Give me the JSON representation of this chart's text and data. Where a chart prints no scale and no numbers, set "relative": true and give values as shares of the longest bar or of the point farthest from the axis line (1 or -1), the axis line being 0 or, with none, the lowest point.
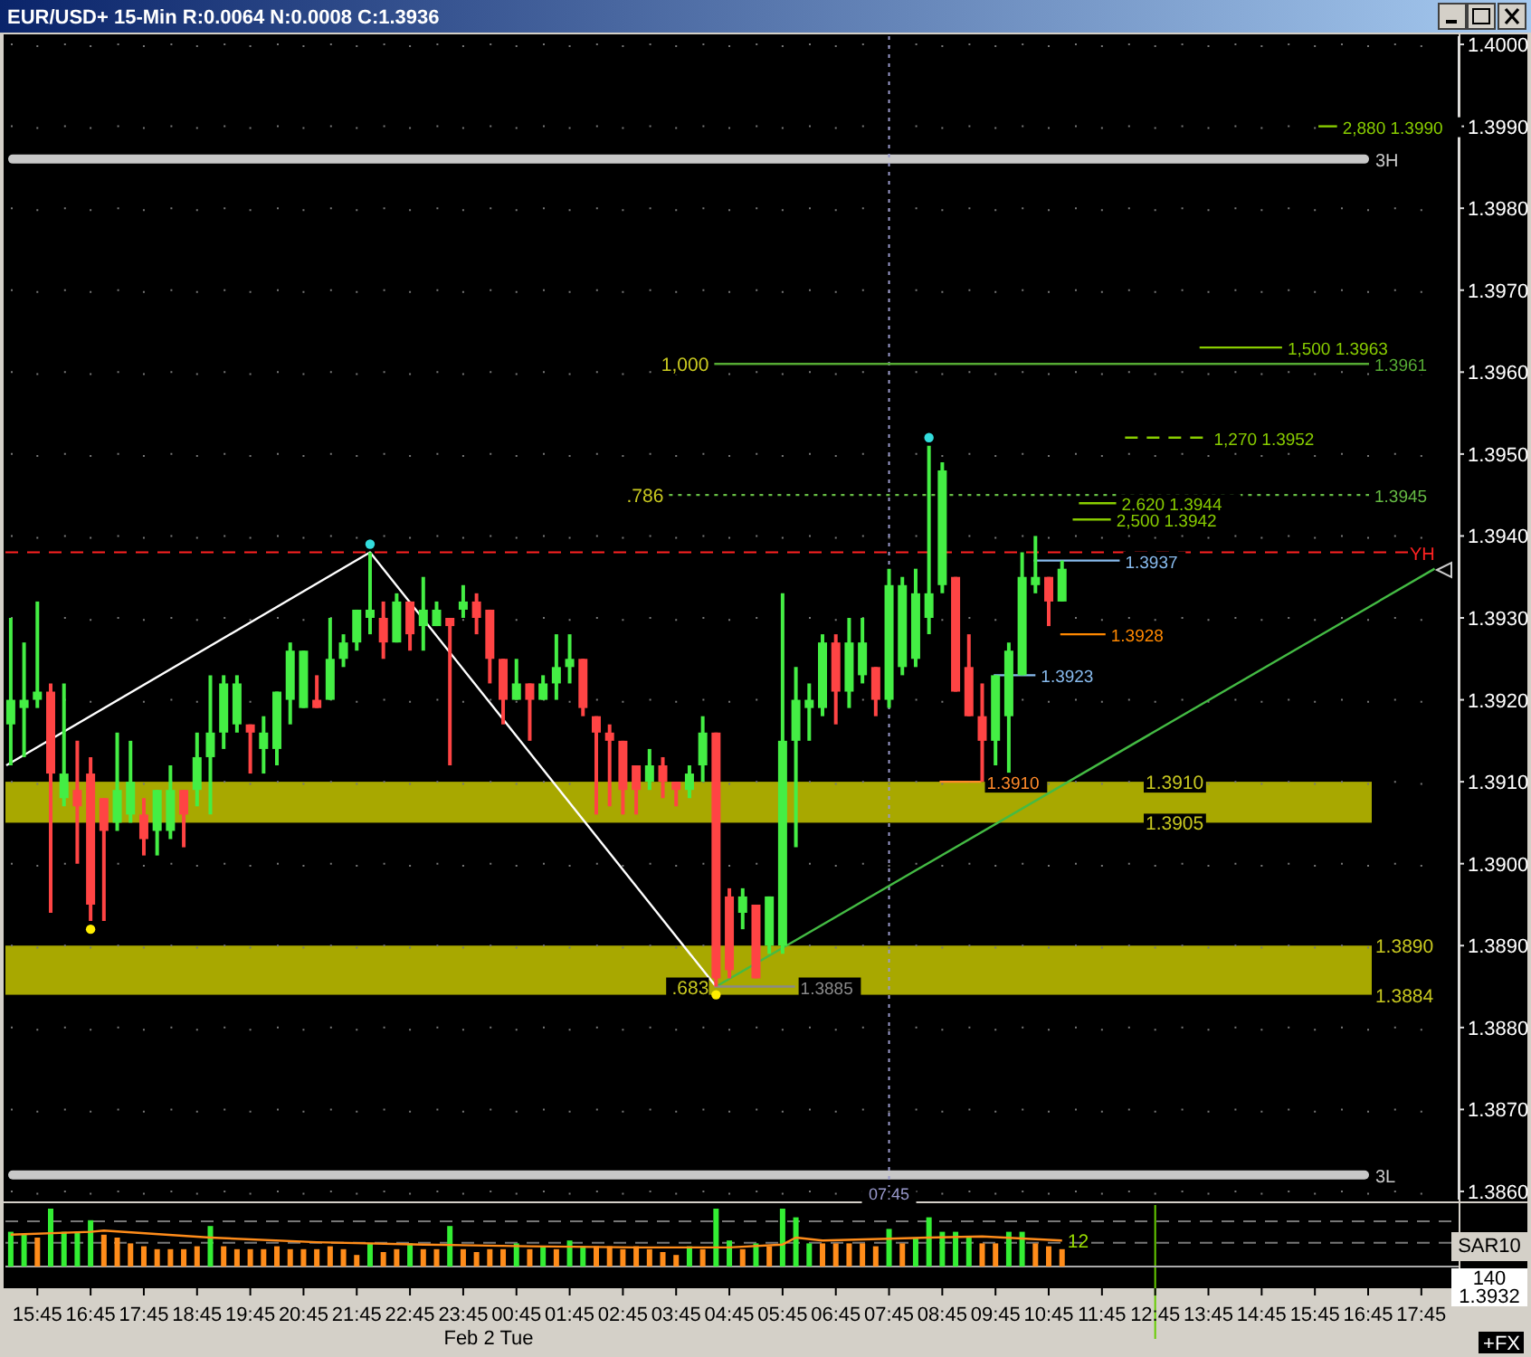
{
  "chart_data": [
    {
      "type": "candlestick",
      "title": "EUR/USD+ 15-Min R:0.0064 N:0.0008 C:1.3936",
      "x": [
        "--02-01T15:15",
        "--02-01T15:30",
        "--02-01T15:45",
        "--02-01T16:00",
        "--02-01T16:15",
        "--02-01T16:30",
        "--02-01T16:45",
        "--02-01T17:00",
        "--02-01T17:15",
        "--02-01T17:30",
        "--02-01T17:45",
        "--02-01T18:00",
        "--02-01T18:15",
        "--02-01T18:30",
        "--02-01T18:45",
        "--02-01T19:00",
        "--02-01T19:15",
        "--02-01T19:30",
        "--02-01T19:45",
        "--02-01T20:00",
        "--02-01T20:15",
        "--02-01T20:30",
        "--02-01T20:45",
        "--02-01T21:00",
        "--02-01T21:15",
        "--02-01T21:30",
        "--02-01T21:45",
        "--02-01T22:00",
        "--02-01T22:15",
        "--02-01T22:30",
        "--02-01T22:45",
        "--02-01T23:00",
        "--02-01T23:15",
        "--02-01T23:30",
        "--02-01T23:45",
        "--02-02T00:00",
        "--02-02T00:15",
        "--02-02T00:30",
        "--02-02T00:45",
        "--02-02T01:00",
        "--02-02T01:15",
        "--02-02T01:30",
        "--02-02T01:45",
        "--02-02T02:00",
        "--02-02T02:15",
        "--02-02T02:30",
        "--02-02T02:45",
        "--02-02T03:00",
        "--02-02T03:15",
        "--02-02T03:30",
        "--02-02T03:45",
        "--02-02T04:00",
        "--02-02T04:15",
        "--02-02T04:30",
        "--02-02T04:45",
        "--02-02T05:00",
        "--02-02T05:15",
        "--02-02T05:30",
        "--02-02T05:45",
        "--02-02T06:00",
        "--02-02T06:15",
        "--02-02T06:30",
        "--02-02T06:45",
        "--02-02T07:00",
        "--02-02T07:15",
        "--02-02T07:30",
        "--02-02T07:45",
        "--02-02T08:00",
        "--02-02T08:15",
        "--02-02T08:30",
        "--02-02T08:45",
        "--02-02T09:00",
        "--02-02T09:15",
        "--02-02T09:30",
        "--02-02T09:45",
        "--02-02T10:00",
        "--02-02T10:15",
        "--02-02T10:30",
        "--02-02T10:45",
        "--02-02T11:00"
      ],
      "ohlc": [
        [
          1.3917,
          1.393,
          1.3912,
          1.392
        ],
        [
          1.3919,
          1.3927,
          1.3913,
          1.392
        ],
        [
          1.392,
          1.3932,
          1.3919,
          1.3921
        ],
        [
          1.3921,
          1.3922,
          1.3894,
          1.3911
        ],
        [
          1.3908,
          1.3922,
          1.3907,
          1.3911
        ],
        [
          1.3909,
          1.3915,
          1.39,
          1.3907
        ],
        [
          1.3911,
          1.3913,
          1.3893,
          1.3895
        ],
        [
          1.3908,
          1.3908,
          1.3893,
          1.3904
        ],
        [
          1.3905,
          1.3916,
          1.3904,
          1.3909
        ],
        [
          1.3906,
          1.3915,
          1.3905,
          1.391
        ],
        [
          1.3906,
          1.3908,
          1.3901,
          1.3903
        ],
        [
          1.3904,
          1.3909,
          1.3901,
          1.3909
        ],
        [
          1.3904,
          1.3912,
          1.3903,
          1.3909
        ],
        [
          1.3909,
          1.3909,
          1.3902,
          1.3906
        ],
        [
          1.3909,
          1.3916,
          1.3907,
          1.3913
        ],
        [
          1.3913,
          1.3923,
          1.3906,
          1.3916
        ],
        [
          1.3916,
          1.3923,
          1.3914,
          1.3922
        ],
        [
          1.3917,
          1.3923,
          1.3916,
          1.3922
        ],
        [
          1.3917,
          1.3917,
          1.3911,
          1.3916
        ],
        [
          1.3914,
          1.3918,
          1.3911,
          1.3916
        ],
        [
          1.3914,
          1.3921,
          1.3912,
          1.3921
        ],
        [
          1.392,
          1.3927,
          1.3917,
          1.3926
        ],
        [
          1.3919,
          1.3926,
          1.3919,
          1.3926
        ],
        [
          1.392,
          1.3923,
          1.3919,
          1.3919
        ],
        [
          1.392,
          1.393,
          1.392,
          1.3925
        ],
        [
          1.3925,
          1.3928,
          1.3924,
          1.3927
        ],
        [
          1.3927,
          1.3931,
          1.3926,
          1.3931
        ],
        [
          1.393,
          1.3938,
          1.3928,
          1.3931
        ],
        [
          1.393,
          1.3932,
          1.3925,
          1.3927
        ],
        [
          1.3927,
          1.3933,
          1.3927,
          1.3932
        ],
        [
          1.3932,
          1.3932,
          1.3926,
          1.3928
        ],
        [
          1.3929,
          1.3935,
          1.3926,
          1.3931
        ],
        [
          1.3929,
          1.3932,
          1.3929,
          1.3931
        ],
        [
          1.393,
          1.393,
          1.3912,
          1.3929
        ],
        [
          1.3931,
          1.3934,
          1.393,
          1.3932
        ],
        [
          1.3932,
          1.3933,
          1.3928,
          1.393
        ],
        [
          1.3931,
          1.3931,
          1.3922,
          1.3925
        ],
        [
          1.3925,
          1.3925,
          1.3917,
          1.392
        ],
        [
          1.392,
          1.3925,
          1.392,
          1.3922
        ],
        [
          1.3922,
          1.3922,
          1.3915,
          1.392
        ],
        [
          1.392,
          1.3923,
          1.392,
          1.3922
        ],
        [
          1.3922,
          1.3928,
          1.392,
          1.3924
        ],
        [
          1.3924,
          1.3928,
          1.3922,
          1.3925
        ],
        [
          1.3925,
          1.3925,
          1.3918,
          1.3919
        ],
        [
          1.3918,
          1.3918,
          1.3906,
          1.3916
        ],
        [
          1.3916,
          1.3917,
          1.3907,
          1.3915
        ],
        [
          1.3915,
          1.3915,
          1.3906,
          1.3909
        ],
        [
          1.3912,
          1.3912,
          1.3906,
          1.3909
        ],
        [
          1.391,
          1.3914,
          1.3909,
          1.3912
        ],
        [
          1.3912,
          1.3913,
          1.3908,
          1.391
        ],
        [
          1.391,
          1.391,
          1.3907,
          1.3909
        ],
        [
          1.3909,
          1.3912,
          1.3908,
          1.3911
        ],
        [
          1.3912,
          1.3918,
          1.391,
          1.3916
        ],
        [
          1.3916,
          1.3916,
          1.3885,
          1.3886
        ],
        [
          1.3896,
          1.3897,
          1.3886,
          1.3887
        ],
        [
          1.3894,
          1.3897,
          1.3892,
          1.3896
        ],
        [
          1.3895,
          1.3895,
          1.3886,
          1.3886
        ],
        [
          1.389,
          1.3896,
          1.3889,
          1.3896
        ],
        [
          1.389,
          1.3933,
          1.3889,
          1.3915
        ],
        [
          1.3915,
          1.3924,
          1.3902,
          1.392
        ],
        [
          1.3919,
          1.3922,
          1.3915,
          1.392
        ],
        [
          1.3919,
          1.3928,
          1.3918,
          1.3927
        ],
        [
          1.3927,
          1.3928,
          1.3917,
          1.3921
        ],
        [
          1.3921,
          1.393,
          1.3919,
          1.3927
        ],
        [
          1.3923,
          1.393,
          1.3922,
          1.3927
        ],
        [
          1.3924,
          1.3924,
          1.3918,
          1.392
        ],
        [
          1.392,
          1.3936,
          1.3919,
          1.3934
        ],
        [
          1.3924,
          1.3935,
          1.3923,
          1.3934
        ],
        [
          1.3925,
          1.3936,
          1.3924,
          1.3933
        ],
        [
          1.393,
          1.3951,
          1.3928,
          1.3933
        ],
        [
          1.3934,
          1.3949,
          1.3933,
          1.3948
        ],
        [
          1.3935,
          1.3935,
          1.3921,
          1.3921
        ],
        [
          1.3924,
          1.3928,
          1.3918,
          1.3918
        ],
        [
          1.3918,
          1.3922,
          1.391,
          1.3915
        ],
        [
          1.3915,
          1.3923,
          1.3912,
          1.3923
        ],
        [
          1.3918,
          1.3927,
          1.3911,
          1.3926
        ],
        [
          1.3923,
          1.3938,
          1.3923,
          1.3935
        ],
        [
          1.3934,
          1.394,
          1.3933,
          1.3935
        ],
        [
          1.3935,
          1.3935,
          1.3929,
          1.3932
        ],
        [
          1.3932,
          1.3937,
          1.3932,
          1.3936
        ]
      ],
      "colors": [
        "#44ee44",
        "#44ee44",
        "#44ee44",
        "#ff4444",
        "#44ee44",
        "#ff4444",
        "#ff4444",
        "#ff4444",
        "#44ee44",
        "#44ee44",
        "#ff4444",
        "#44ee44",
        "#44ee44",
        "#ff4444",
        "#44ee44",
        "#44ee44",
        "#44ee44",
        "#44ee44",
        "#ff4444",
        "#44ee44",
        "#44ee44",
        "#44ee44",
        "#44ee44",
        "#ff4444",
        "#44ee44",
        "#44ee44",
        "#44ee44",
        "#44ee44",
        "#ff4444",
        "#44ee44",
        "#ff4444",
        "#44ee44",
        "#44ee44",
        "#ff4444",
        "#44ee44",
        "#ff4444",
        "#ff4444",
        "#ff4444",
        "#44ee44",
        "#ff4444",
        "#44ee44",
        "#44ee44",
        "#44ee44",
        "#ff4444",
        "#ff4444",
        "#ff4444",
        "#ff4444",
        "#ff4444",
        "#44ee44",
        "#ff4444",
        "#ff4444",
        "#44ee44",
        "#44ee44",
        "#ff4444",
        "#ff4444",
        "#44ee44",
        "#ff4444",
        "#44ee44",
        "#44ee44",
        "#44ee44",
        "#44ee44",
        "#44ee44",
        "#ff4444",
        "#44ee44",
        "#44ee44",
        "#ff4444",
        "#44ee44",
        "#44ee44",
        "#44ee44",
        "#44ee44",
        "#44ee44",
        "#ff4444",
        "#ff4444",
        "#ff4444",
        "#44ee44",
        "#44ee44",
        "#44ee44",
        "#44ee44",
        "#ff4444",
        "#44ee44"
      ],
      "series": [
        {
          "type": "line",
          "color": "#ffffff",
          "x": [
            "--02-01T15:10",
            "--02-01T22:00",
            "--02-02T04:30"
          ],
          "values": [
            1.3912,
            1.3938,
            1.3885
          ]
        },
        {
          "type": "line",
          "color": "#44bb44",
          "x": [
            "--02-02T04:30",
            "--02-02T18:00"
          ],
          "values": [
            1.3885,
            1.3936
          ]
        },
        {
          "type": "scatter",
          "marker": "circle",
          "color": "#ffee00",
          "x": [
            "--02-01T16:45",
            "--02-02T04:30"
          ],
          "values": [
            1.3892,
            1.3884
          ]
        },
        {
          "type": "scatter",
          "marker": "circle",
          "color": "#33dddd",
          "x": [
            "--02-01T22:00",
            "--02-02T08:30"
          ],
          "values": [
            1.3939,
            1.3952
          ]
        },
        {
          "type": "line",
          "name": "2,880 1.3990",
          "color": "#88cc00",
          "x": [
            "--02-02T15:49",
            "--02-02T16:10"
          ],
          "values": [
            1.399,
            1.399
          ]
        },
        {
          "type": "line",
          "name": "1,500 1.3963",
          "color": "#88cc00",
          "x": [
            "--02-02T13:35",
            "--02-02T15:08"
          ],
          "values": [
            1.3963,
            1.3963
          ]
        },
        {
          "type": "line",
          "name": "1.3961",
          "color": "#55aa33",
          "x": [
            "--02-02T04:28",
            "--02-02T16:46"
          ],
          "values": [
            1.3961,
            1.3961
          ]
        },
        {
          "type": "line",
          "name": "1,270 1.3952",
          "color": "#88cc00",
          "line_style": "dashed",
          "x": [
            "--02-02T12:11",
            "--02-02T13:45"
          ],
          "values": [
            1.3952,
            1.3952
          ]
        },
        {
          "type": "line",
          "name": "1.3945",
          "color": "#66bb44",
          "line_style": "dotted",
          "x": [
            "--02-02T03:37",
            "--02-02T16:46"
          ],
          "values": [
            1.3945,
            1.3945
          ]
        },
        {
          "type": "line",
          "name": "2,620 1.3944",
          "color": "#88cc00",
          "x": [
            "--02-02T11:19",
            "--02-02T12:01"
          ],
          "values": [
            1.3944,
            1.3944
          ]
        },
        {
          "type": "line",
          "name": "2,500 1.3942",
          "color": "#88cc00",
          "x": [
            "--02-02T11:12",
            "--02-02T11:55"
          ],
          "values": [
            1.3942,
            1.3942
          ]
        },
        {
          "type": "line",
          "name": "1.3937",
          "color": "#88bbee",
          "x": [
            "--02-02T10:28",
            "--02-02T12:05"
          ],
          "values": [
            1.3937,
            1.3937
          ]
        },
        {
          "type": "line",
          "name": "1.3928",
          "color": "#ff8800",
          "x": [
            "--02-02T10:58",
            "--02-02T11:49"
          ],
          "values": [
            1.3928,
            1.3928
          ]
        },
        {
          "type": "line",
          "name": "1.3923",
          "color": "#88bbee",
          "x": [
            "--02-02T09:43",
            "--02-02T10:30"
          ],
          "values": [
            1.3923,
            1.3923
          ]
        },
        {
          "type": "line",
          "name": "1.3910",
          "color": "#ff8a2a",
          "x": [
            "--02-02T08:42",
            "--02-02T09:29"
          ],
          "values": [
            1.391,
            1.391
          ]
        },
        {
          "type": "line",
          "name": "1.3885",
          "color": "#8a8a8a",
          "x": [
            "--02-02T04:28",
            "--02-02T05:59"
          ],
          "values": [
            1.3885,
            1.3885
          ]
        }
      ],
      "bands": [
        {
          "axis": "y",
          "from": 1.3905,
          "to": 1.391,
          "color": "#a8a800"
        },
        {
          "axis": "y",
          "from": 1.3884,
          "to": 1.389,
          "color": "#a8a800"
        }
      ],
      "ref_lines": [
        {
          "axis": "y",
          "value": 1.3938,
          "label": "YH",
          "color": "#ff2222",
          "line_style": "dashed"
        },
        {
          "axis": "y",
          "value": 1.3986,
          "label": "3H",
          "color": "#c8c8c8"
        },
        {
          "axis": "y",
          "value": 1.3862,
          "label": "3L",
          "color": "#c8c8c8"
        },
        {
          "axis": "x",
          "value": "--02-02T07:45",
          "label": "07:45",
          "color": "#9999cc",
          "line_style": "dotted"
        }
      ],
      "annotations": [
        {
          "text": "1.3910",
          "x": "--02-02T12:28",
          "y": 1.391
        },
        {
          "text": "1.3905",
          "x": "--02-02T12:28",
          "y": 1.3905
        },
        {
          "text": "1.3890",
          "x": "--02-02T16:47",
          "y": 1.389
        },
        {
          "text": "1.3884",
          "x": "--02-02T16:47",
          "y": 1.3884
        },
        {
          "text": ".683",
          "x": "--02-02T04:28",
          "y": 1.3885
        },
        {
          "text": "1,000",
          "x": "--02-02T04:28",
          "y": 1.3961
        },
        {
          "text": ".786",
          "x": "--02-02T03:37",
          "y": 1.3945
        }
      ],
      "xlim": [
        "--02-01T15:09",
        "--02-02T18:27"
      ],
      "ylim": [
        1.3859,
        1.4001
      ],
      "xticks": [
        {
          "value": "--02-01T15:45",
          "label": null
        },
        {
          "value": "--02-01T16:45",
          "label": null
        },
        {
          "value": "--02-01T17:45",
          "label": null
        },
        {
          "value": "--02-01T18:45",
          "label": null
        },
        {
          "value": "--02-01T19:45",
          "label": null
        },
        {
          "value": "--02-01T20:45",
          "label": null
        },
        {
          "value": "--02-01T21:45",
          "label": null
        },
        {
          "value": "--02-01T22:45",
          "label": null
        },
        {
          "value": "--02-01T23:45",
          "label": null
        },
        {
          "value": "--02-02T00:45",
          "label": null
        },
        {
          "value": "--02-02T01:45",
          "label": null
        },
        {
          "value": "--02-02T02:45",
          "label": null
        },
        {
          "value": "--02-02T03:45",
          "label": null
        },
        {
          "value": "--02-02T04:45",
          "label": null
        },
        {
          "value": "--02-02T05:45",
          "label": null
        },
        {
          "value": "--02-02T06:45",
          "label": null
        },
        {
          "value": "--02-02T07:45",
          "label": null
        },
        {
          "value": "--02-02T08:45",
          "label": null
        },
        {
          "value": "--02-02T09:45",
          "label": null
        },
        {
          "value": "--02-02T10:45",
          "label": null
        },
        {
          "value": "--02-02T11:45",
          "label": null
        },
        {
          "value": "--02-02T12:45",
          "label": null
        },
        {
          "value": "--02-02T13:45",
          "label": null
        },
        {
          "value": "--02-02T14:45",
          "label": null
        },
        {
          "value": "--02-02T15:45",
          "label": null
        },
        {
          "value": "--02-02T16:45",
          "label": null
        },
        {
          "value": "--02-02T17:45",
          "label": null
        }
      ],
      "yticks": [
        {
          "value": 1.386,
          "label": "1.3860"
        },
        {
          "value": 1.387,
          "label": "1.3870"
        },
        {
          "value": 1.388,
          "label": "1.3880"
        },
        {
          "value": 1.389,
          "label": "1.3890"
        },
        {
          "value": 1.39,
          "label": "1.3900"
        },
        {
          "value": 1.391,
          "label": "1.3910"
        },
        {
          "value": 1.392,
          "label": "1.3920"
        },
        {
          "value": 1.393,
          "label": "1.3930"
        },
        {
          "value": 1.394,
          "label": "1.3940"
        },
        {
          "value": 1.395,
          "label": "1.3950"
        },
        {
          "value": 1.396,
          "label": "1.3960"
        },
        {
          "value": 1.397,
          "label": "1.3970"
        },
        {
          "value": 1.398,
          "label": "1.3980"
        },
        {
          "value": 1.399,
          "label": "1.3990"
        },
        {
          "value": 1.4,
          "label": "1.4000"
        }
      ],
      "grid": true,
      "tick_labels": "y"
    },
    {
      "type": "bar",
      "relative": true,
      "x": [
        "--02-01T15:15",
        "--02-01T15:30",
        "--02-01T15:45",
        "--02-01T16:00",
        "--02-01T16:15",
        "--02-01T16:30",
        "--02-01T16:45",
        "--02-01T17:00",
        "--02-01T17:15",
        "--02-01T17:30",
        "--02-01T17:45",
        "--02-01T18:00",
        "--02-01T18:15",
        "--02-01T18:30",
        "--02-01T18:45",
        "--02-01T19:00",
        "--02-01T19:15",
        "--02-01T19:30",
        "--02-01T19:45",
        "--02-01T20:00",
        "--02-01T20:15",
        "--02-01T20:30",
        "--02-01T20:45",
        "--02-01T21:00",
        "--02-01T21:15",
        "--02-01T21:30",
        "--02-01T21:45",
        "--02-01T22:00",
        "--02-01T22:15",
        "--02-01T22:30",
        "--02-01T22:45",
        "--02-01T23:00",
        "--02-01T23:15",
        "--02-01T23:30",
        "--02-01T23:45",
        "--02-02T00:00",
        "--02-02T00:15",
        "--02-02T00:30",
        "--02-02T00:45",
        "--02-02T01:00",
        "--02-02T01:15",
        "--02-02T01:30",
        "--02-02T01:45",
        "--02-02T02:00",
        "--02-02T02:15",
        "--02-02T02:30",
        "--02-02T02:45",
        "--02-02T03:00",
        "--02-02T03:15",
        "--02-02T03:30",
        "--02-02T03:45",
        "--02-02T04:00",
        "--02-02T04:15",
        "--02-02T04:30",
        "--02-02T04:45",
        "--02-02T05:00",
        "--02-02T05:15",
        "--02-02T05:30",
        "--02-02T05:45",
        "--02-02T06:00",
        "--02-02T06:15",
        "--02-02T06:30",
        "--02-02T06:45",
        "--02-02T07:00",
        "--02-02T07:15",
        "--02-02T07:30",
        "--02-02T07:45",
        "--02-02T08:00",
        "--02-02T08:15",
        "--02-02T08:30",
        "--02-02T08:45",
        "--02-02T09:00",
        "--02-02T09:15",
        "--02-02T09:30",
        "--02-02T09:45",
        "--02-02T10:00",
        "--02-02T10:15",
        "--02-02T10:30",
        "--02-02T10:45",
        "--02-02T11:00"
      ],
      "series": [
        {
          "type": "bar",
          "values": [
            0.6,
            0.55,
            0.5,
            1,
            0.6,
            0.6,
            0.8,
            0.55,
            0.5,
            0.4,
            0.35,
            0.3,
            0.3,
            0.3,
            0.35,
            0.7,
            0.35,
            0.3,
            0.3,
            0.3,
            0.35,
            0.3,
            0.3,
            0.3,
            0.35,
            0.3,
            0.2,
            0.4,
            0.25,
            0.3,
            0.4,
            0.3,
            0.3,
            0.7,
            0.3,
            0.25,
            0.3,
            0.3,
            0.4,
            0.3,
            0.35,
            0.3,
            0.45,
            0.35,
            0.35,
            0.35,
            0.3,
            0.35,
            0.3,
            0.25,
            0.2,
            0.35,
            0.3,
            1,
            0.45,
            0.3,
            0.4,
            0.35,
            1,
            0.85,
            0.4,
            0.4,
            0.4,
            0.4,
            0.4,
            0.35,
            0.65,
            0.4,
            0.5,
            0.85,
            0.6,
            0.6,
            0.5,
            0.4,
            0.4,
            0.6,
            0.6,
            0.4,
            0.35,
            0.3
          ],
          "colors": [
            "#33ee33",
            "#33ee33",
            "#ff8c1a",
            "#33ee33",
            "#33ee33",
            "#33ee33",
            "#33ee33",
            "#ff8c1a",
            "#ff8c1a",
            "#ff8c1a",
            "#ff8c1a",
            "#ff8c1a",
            "#ff8c1a",
            "#ff8c1a",
            "#ff8c1a",
            "#33ee33",
            "#ff8c1a",
            "#ff8c1a",
            "#ff8c1a",
            "#ff8c1a",
            "#ff8c1a",
            "#ff8c1a",
            "#ff8c1a",
            "#ff8c1a",
            "#ff8c1a",
            "#ff8c1a",
            "#ff8c1a",
            "#33ee33",
            "#ff8c1a",
            "#ff8c1a",
            "#33ee33",
            "#ff8c1a",
            "#ff8c1a",
            "#33ee33",
            "#ff8c1a",
            "#ff8c1a",
            "#ff8c1a",
            "#ff8c1a",
            "#33ee33",
            "#ff8c1a",
            "#33ee33",
            "#ff8c1a",
            "#33ee33",
            "#33ee33",
            "#ff8c1a",
            "#ff8c1a",
            "#ff8c1a",
            "#ff8c1a",
            "#ff8c1a",
            "#ff8c1a",
            "#ff8c1a",
            "#33ee33",
            "#ff8c1a",
            "#33ee33",
            "#33ee33",
            "#ff8c1a",
            "#33ee33",
            "#ff8c1a",
            "#33ee33",
            "#33ee33",
            "#33ee33",
            "#ff8c1a",
            "#ff8c1a",
            "#ff8c1a",
            "#ff8c1a",
            "#ff8c1a",
            "#33ee33",
            "#ff8c1a",
            "#33ee33",
            "#33ee33",
            "#33ee33",
            "#33ee33",
            "#33ee33",
            "#ff8c1a",
            "#ff8c1a",
            "#33ee33",
            "#33ee33",
            "#ff8c1a",
            "#ff8c1a",
            "#ff8c1a"
          ]
        },
        {
          "type": "line",
          "color": "#ff8c1a",
          "x": [
            "--02-01T15:15",
            "--02-01T16:45",
            "--02-01T17:00",
            "--02-01T19:00",
            "--02-01T21:00",
            "--02-01T23:00",
            "--02-02T01:00",
            "--02-02T03:00",
            "--02-02T04:45",
            "--02-02T05:45",
            "--02-02T06:00",
            "--02-02T06:30",
            "--02-02T08:30",
            "--02-02T09:30",
            "--02-02T11:00"
          ],
          "values": [
            0.55,
            0.6,
            0.62,
            0.5,
            0.42,
            0.38,
            0.35,
            0.33,
            0.33,
            0.38,
            0.5,
            0.45,
            0.5,
            0.52,
            0.45
          ]
        }
      ],
      "ref_lines": [
        {
          "axis": "x",
          "value": "--02-02T12:45",
          "color": "#66cc00"
        },
        {
          "axis": "y",
          "value": 0.78,
          "color": "#777777",
          "line_style": "dashed"
        },
        {
          "axis": "y",
          "value": 0.41,
          "color": "#777777",
          "line_style": "dashed"
        }
      ],
      "annotations": [
        {
          "text": "12",
          "x": "--02-02T11:00",
          "y": 0.45
        },
        "Feb 2 Tue",
        "SAR10",
        "140",
        "1.3932",
        "+FX"
      ],
      "xlim": [
        "--02-01T15:09",
        "--02-02T18:27"
      ],
      "xticks": [
        {
          "value": "--02-01T15:45",
          "label": "15:45"
        },
        {
          "value": "--02-01T16:45",
          "label": "16:45"
        },
        {
          "value": "--02-01T17:45",
          "label": "17:45"
        },
        {
          "value": "--02-01T18:45",
          "label": "18:45"
        },
        {
          "value": "--02-01T19:45",
          "label": "19:45"
        },
        {
          "value": "--02-01T20:45",
          "label": "20:45"
        },
        {
          "value": "--02-01T21:45",
          "label": "21:45"
        },
        {
          "value": "--02-01T22:45",
          "label": "22:45"
        },
        {
          "value": "--02-01T23:45",
          "label": "23:45"
        },
        {
          "value": "--02-02T00:45",
          "label": "00:45"
        },
        {
          "value": "--02-02T01:45",
          "label": "01:45"
        },
        {
          "value": "--02-02T02:45",
          "label": "02:45"
        },
        {
          "value": "--02-02T03:45",
          "label": "03:45"
        },
        {
          "value": "--02-02T04:45",
          "label": "04:45"
        },
        {
          "value": "--02-02T05:45",
          "label": "05:45"
        },
        {
          "value": "--02-02T06:45",
          "label": "06:45"
        },
        {
          "value": "--02-02T07:45",
          "label": "07:45"
        },
        {
          "value": "--02-02T08:45",
          "label": "08:45"
        },
        {
          "value": "--02-02T09:45",
          "label": "09:45"
        },
        {
          "value": "--02-02T10:45",
          "label": "10:45"
        },
        {
          "value": "--02-02T11:45",
          "label": "11:45"
        },
        {
          "value": "--02-02T12:45",
          "label": "12:45"
        },
        {
          "value": "--02-02T13:45",
          "label": "13:45"
        },
        {
          "value": "--02-02T14:45",
          "label": "14:45"
        },
        {
          "value": "--02-02T15:45",
          "label": "15:45"
        },
        {
          "value": "--02-02T16:45",
          "label": "16:45"
        },
        {
          "value": "--02-02T17:45",
          "label": "17:45"
        }
      ],
      "tick_labels": "x"
    }
  ]
}
